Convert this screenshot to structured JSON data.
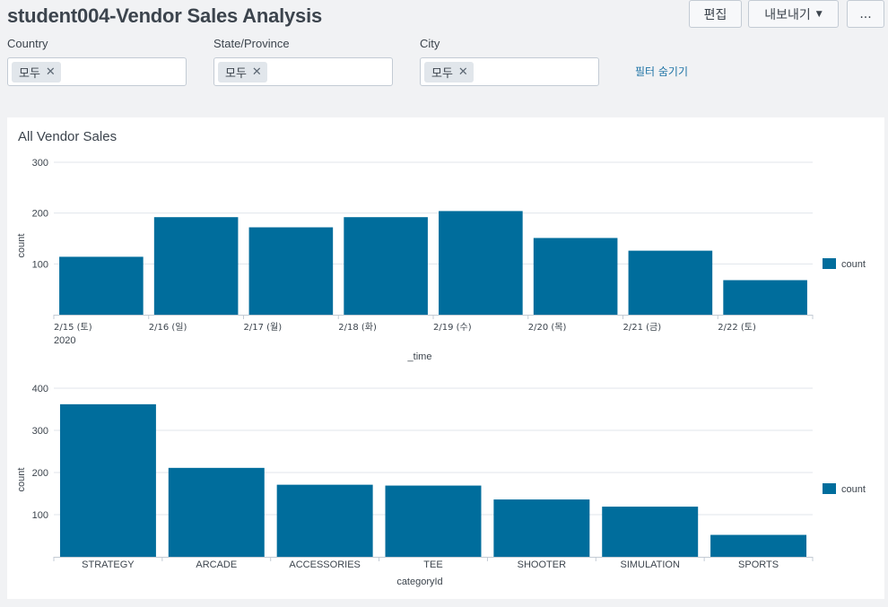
{
  "header": {
    "title": "student004-Vendor Sales Analysis",
    "edit_label": "편집",
    "export_label": "내보내기",
    "more_label": "..."
  },
  "filters": [
    {
      "label": "Country",
      "value": "모두"
    },
    {
      "label": "State/Province",
      "value": "모두"
    },
    {
      "label": "City",
      "value": "모두"
    }
  ],
  "hide_filters_label": "필터 숨기기",
  "panel": {
    "title": "All Vendor Sales"
  },
  "accent_color": "#006d9c",
  "chart_data": [
    {
      "type": "bar",
      "categories": [
        "2/15 (토)",
        "2/16 (일)",
        "2/17 (월)",
        "2/18 (화)",
        "2/19 (수)",
        "2/20 (목)",
        "2/21 (금)",
        "2/22 (토)"
      ],
      "year_label": "2020",
      "series": [
        {
          "name": "count",
          "values": [
            114,
            192,
            172,
            192,
            204,
            151,
            126,
            68
          ]
        }
      ],
      "xlabel": "_time",
      "ylabel": "count",
      "ylim": [
        0,
        300
      ],
      "yticks": [
        100,
        200,
        300
      ],
      "grid": true,
      "legend": "right"
    },
    {
      "type": "bar",
      "categories": [
        "STRATEGY",
        "ARCADE",
        "ACCESSORIES",
        "TEE",
        "SHOOTER",
        "SIMULATION",
        "SPORTS"
      ],
      "series": [
        {
          "name": "count",
          "values": [
            362,
            211,
            171,
            169,
            136,
            119,
            52
          ]
        }
      ],
      "xlabel": "categoryId",
      "ylabel": "count",
      "ylim": [
        0,
        400
      ],
      "yticks": [
        100,
        200,
        300,
        400
      ],
      "grid": true,
      "legend": "right"
    }
  ]
}
